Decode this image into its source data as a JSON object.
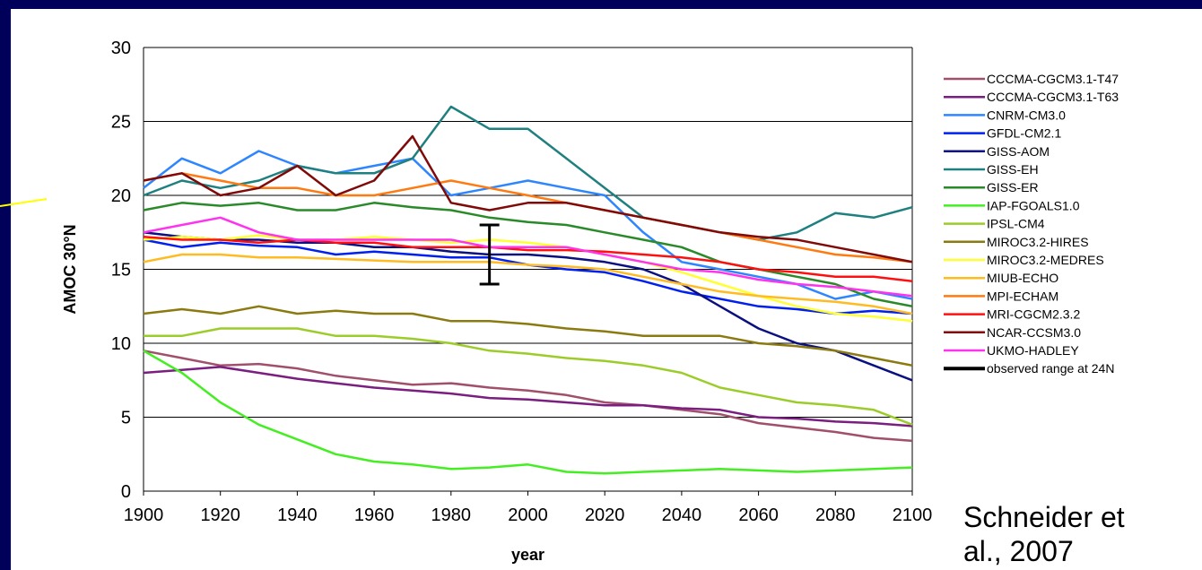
{
  "credit": "Schneider et\nal., 2007",
  "chart_data": {
    "type": "line",
    "title": "",
    "xlabel": "year",
    "ylabel": "AMOC 30°N",
    "xlim": [
      1900,
      2100
    ],
    "ylim": [
      0,
      30
    ],
    "x_ticks": [
      "1900",
      "1920",
      "1940",
      "1960",
      "1980",
      "2000",
      "2020",
      "2040",
      "2060",
      "2080",
      "2100"
    ],
    "y_ticks": [
      "0",
      "5",
      "10",
      "15",
      "20",
      "25",
      "30"
    ],
    "grid": "horizontal",
    "legend_position": "right",
    "x": [
      1900,
      1910,
      1920,
      1930,
      1940,
      1950,
      1960,
      1970,
      1980,
      1990,
      2000,
      2010,
      2020,
      2030,
      2040,
      2050,
      2060,
      2070,
      2080,
      2090,
      2100
    ],
    "series": [
      {
        "name": "CCCMA-CGCM3.1-T47",
        "color": "#a0506a",
        "values": [
          9.5,
          9.0,
          8.5,
          8.6,
          8.3,
          7.8,
          7.5,
          7.2,
          7.3,
          7.0,
          6.8,
          6.5,
          6.0,
          5.8,
          5.5,
          5.2,
          4.6,
          4.3,
          4.0,
          3.6,
          3.4
        ]
      },
      {
        "name": "CCCMA-CGCM3.1-T63",
        "color": "#7a1e80",
        "values": [
          8.0,
          8.2,
          8.4,
          8.0,
          7.6,
          7.3,
          7.0,
          6.8,
          6.6,
          6.3,
          6.2,
          6.0,
          5.8,
          5.8,
          5.6,
          5.5,
          5.0,
          4.9,
          4.7,
          4.6,
          4.4
        ]
      },
      {
        "name": "CNRM-CM3.0",
        "color": "#2e86ff",
        "values": [
          20.5,
          22.5,
          21.5,
          23.0,
          22.0,
          21.5,
          22.0,
          22.5,
          20.0,
          20.5,
          21.0,
          20.5,
          20.0,
          17.5,
          15.5,
          15.0,
          14.5,
          14.0,
          13.0,
          13.5,
          13.0
        ]
      },
      {
        "name": "GFDL-CM2.1",
        "color": "#0020f0",
        "values": [
          17.0,
          16.5,
          16.8,
          16.6,
          16.5,
          16.0,
          16.2,
          16.0,
          15.8,
          15.8,
          15.3,
          15.0,
          14.8,
          14.2,
          13.5,
          13.0,
          12.5,
          12.3,
          12.0,
          12.2,
          12.0
        ]
      },
      {
        "name": "GISS-AOM",
        "color": "#0a1080",
        "values": [
          17.5,
          17.2,
          17.0,
          17.0,
          16.8,
          16.8,
          16.5,
          16.5,
          16.2,
          16.0,
          16.0,
          15.8,
          15.5,
          15.0,
          14.0,
          12.5,
          11.0,
          10.0,
          9.5,
          8.5,
          7.5
        ]
      },
      {
        "name": "GISS-EH",
        "color": "#1f8080",
        "values": [
          20.0,
          21.0,
          20.5,
          21.0,
          22.0,
          21.5,
          21.5,
          22.5,
          26.0,
          24.5,
          24.5,
          22.5,
          20.5,
          18.5,
          18.0,
          17.5,
          17.0,
          17.5,
          18.8,
          18.5,
          19.2
        ]
      },
      {
        "name": "GISS-ER",
        "color": "#2a8a2a",
        "values": [
          19.0,
          19.5,
          19.3,
          19.5,
          19.0,
          19.0,
          19.5,
          19.2,
          19.0,
          18.5,
          18.2,
          18.0,
          17.5,
          17.0,
          16.5,
          15.5,
          15.0,
          14.5,
          14.0,
          13.0,
          12.5
        ]
      },
      {
        "name": "IAP-FGOALS1.0",
        "color": "#44ee22",
        "values": [
          9.5,
          8.0,
          6.0,
          4.5,
          3.5,
          2.5,
          2.0,
          1.8,
          1.5,
          1.6,
          1.8,
          1.3,
          1.2,
          1.3,
          1.4,
          1.5,
          1.4,
          1.3,
          1.4,
          1.5,
          1.6
        ]
      },
      {
        "name": "IPSL-CM4",
        "color": "#9ccc2a",
        "values": [
          10.5,
          10.5,
          11.0,
          11.0,
          11.0,
          10.5,
          10.5,
          10.3,
          10.0,
          9.5,
          9.3,
          9.0,
          8.8,
          8.5,
          8.0,
          7.0,
          6.5,
          6.0,
          5.8,
          5.5,
          4.5
        ]
      },
      {
        "name": "MIROC3.2-HIRES",
        "color": "#8a7a10",
        "values": [
          12.0,
          12.3,
          12.0,
          12.5,
          12.0,
          12.2,
          12.0,
          12.0,
          11.5,
          11.5,
          11.3,
          11.0,
          10.8,
          10.5,
          10.5,
          10.5,
          10.0,
          9.8,
          9.5,
          9.0,
          8.5
        ]
      },
      {
        "name": "MIROC3.2-MEDRES",
        "color": "#ffff33",
        "values": [
          17.0,
          17.2,
          17.0,
          17.3,
          17.0,
          17.0,
          17.2,
          17.0,
          16.8,
          17.0,
          16.8,
          16.5,
          16.0,
          15.5,
          14.8,
          14.0,
          13.2,
          12.5,
          12.0,
          11.8,
          11.5
        ]
      },
      {
        "name": "MIUB-ECHO",
        "color": "#ffbb22",
        "values": [
          15.5,
          16.0,
          16.0,
          15.8,
          15.8,
          15.7,
          15.6,
          15.5,
          15.5,
          15.5,
          15.3,
          15.2,
          15.0,
          14.5,
          14.0,
          13.5,
          13.2,
          13.0,
          12.8,
          12.5,
          12.0
        ]
      },
      {
        "name": "MPI-ECHAM",
        "color": "#ff7a10",
        "values": [
          21.0,
          21.5,
          21.0,
          20.5,
          20.5,
          20.0,
          20.0,
          20.5,
          21.0,
          20.5,
          20.0,
          19.5,
          19.0,
          18.5,
          18.0,
          17.5,
          17.0,
          16.5,
          16.0,
          15.8,
          15.5
        ]
      },
      {
        "name": "MRI-CGCM2.3.2",
        "color": "#ff1010",
        "values": [
          17.2,
          17.0,
          17.0,
          16.8,
          17.0,
          16.8,
          16.8,
          16.5,
          16.5,
          16.5,
          16.3,
          16.3,
          16.2,
          16.0,
          15.8,
          15.5,
          15.0,
          14.8,
          14.5,
          14.5,
          14.2
        ]
      },
      {
        "name": "NCAR-CCSM3.0",
        "color": "#800a0a",
        "values": [
          21.0,
          21.5,
          20.0,
          20.5,
          22.0,
          20.0,
          21.0,
          24.0,
          19.5,
          19.0,
          19.5,
          19.5,
          19.0,
          18.5,
          18.0,
          17.5,
          17.2,
          17.0,
          16.5,
          16.0,
          15.5
        ]
      },
      {
        "name": "UKMO-HADLEY",
        "color": "#ff33ee",
        "values": [
          17.5,
          18.0,
          18.5,
          17.5,
          17.0,
          17.0,
          17.0,
          17.0,
          17.0,
          16.5,
          16.5,
          16.5,
          16.0,
          15.5,
          15.0,
          14.8,
          14.3,
          14.0,
          13.8,
          13.5,
          13.2
        ]
      }
    ],
    "observed_range": {
      "name": "observed range at 24N",
      "color": "#000000",
      "x": 1990,
      "low": 14.0,
      "high": 18.0
    }
  }
}
